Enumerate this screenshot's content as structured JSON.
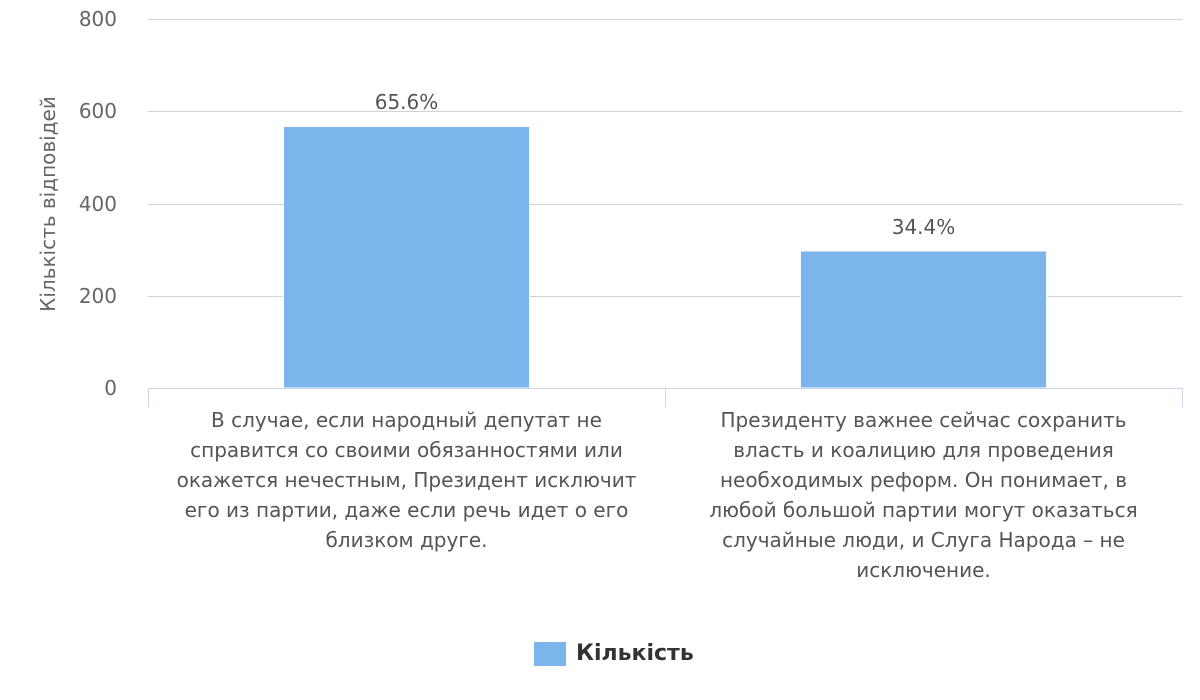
{
  "chart_data": {
    "type": "bar",
    "categories": [
      "В случае, если народный депутат не\nсправится со своими обязанностями или\nокажется нечестным, Президент исключит\nего из партии, даже если речь идет о его\nблизком друге.",
      "Президенту важнее сейчас сохранить\nвласть и коалицию для проведения\nнеобходимых реформ. Он понимает, в\nлюбой большой партии могут оказаться\nслучайные люди, и Слуга Народа – не\nисключение."
    ],
    "series": [
      {
        "name": "Кількість",
        "values": [
          567,
          297
        ],
        "data_labels": [
          "65.6%",
          "34.4%"
        ],
        "color": "#7cb5ec"
      }
    ],
    "ylabel": "Кількість відповідей",
    "ylim": [
      0,
      800
    ],
    "yticks": [
      0,
      200,
      400,
      600,
      800
    ],
    "grid": true,
    "legend": "bottom-center"
  }
}
